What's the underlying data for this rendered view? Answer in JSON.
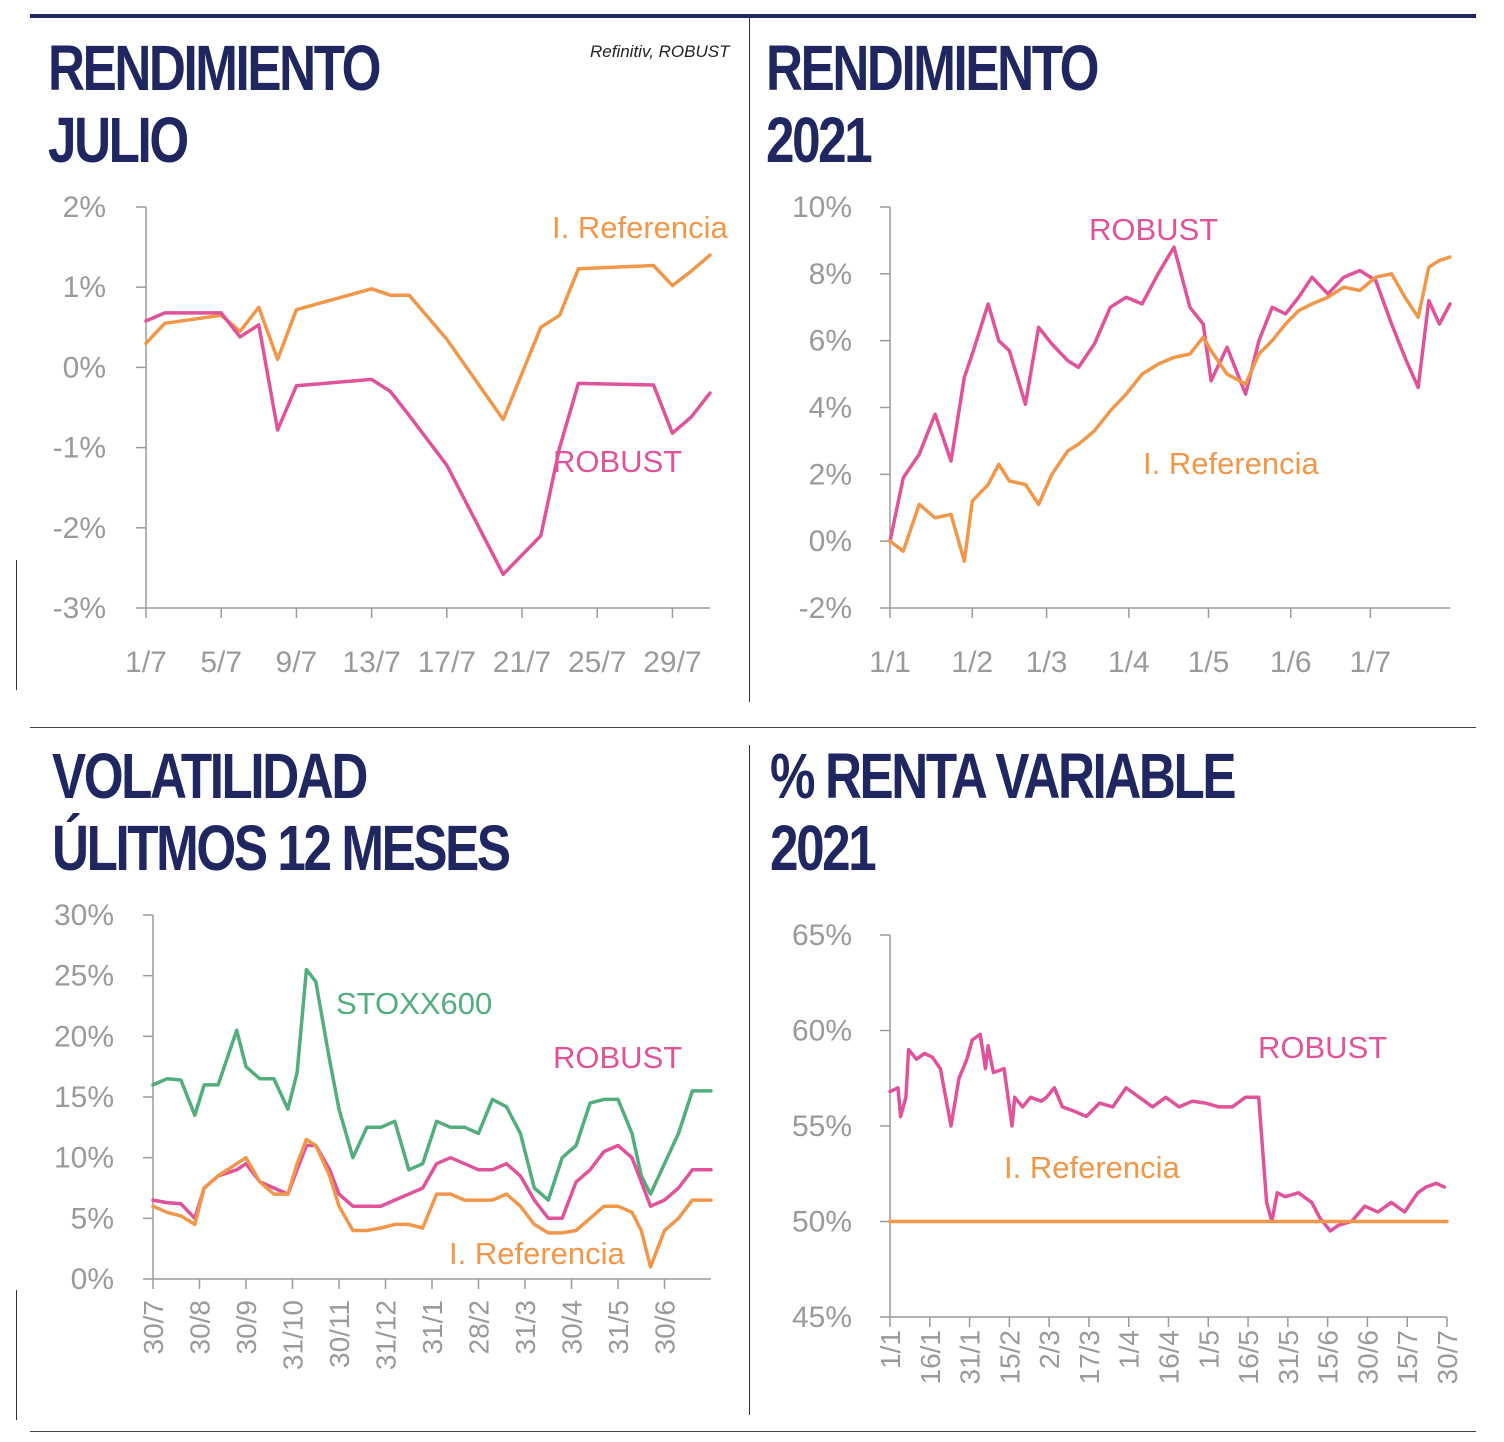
{
  "source": "Refinitiv, ROBUST",
  "colors": {
    "robust": "#e0529a",
    "referencia": "#f0974a",
    "stoxx": "#52ae7c",
    "axis": "#9a9a9a",
    "title": "#1f2660"
  },
  "panels": {
    "p1": {
      "title1": "RENDIMIENTO",
      "title2": "JULIO"
    },
    "p2": {
      "title1": "RENDIMIENTO",
      "title2": "2021"
    },
    "p3": {
      "title1": "VOLATILIDAD",
      "title2": "ÚLITMOS 12 MESES"
    },
    "p4": {
      "title1": "% RENTA VARIABLE",
      "title2": "2021"
    }
  },
  "chart_data": [
    {
      "type": "line",
      "title": "RENDIMIENTO JULIO",
      "x_ticks": [
        "1/7",
        "5/7",
        "9/7",
        "13/7",
        "17/7",
        "21/7",
        "25/7",
        "29/7"
      ],
      "x_tick_days": [
        1,
        5,
        9,
        13,
        17,
        21,
        25,
        29
      ],
      "xlim": [
        1,
        31
      ],
      "y_ticks": [
        "2%",
        "1%",
        "0%",
        "-1%",
        "-2%",
        "-3%"
      ],
      "ylim": [
        -3,
        2
      ],
      "series": [
        {
          "name": "I. Referencia",
          "color": "referencia",
          "x": [
            1,
            2,
            5,
            6,
            7,
            8,
            9,
            13,
            14,
            15,
            17,
            20,
            22,
            23,
            24,
            28,
            29,
            30,
            31
          ],
          "y": [
            0.3,
            0.55,
            0.65,
            0.45,
            0.75,
            0.1,
            0.72,
            0.98,
            0.9,
            0.9,
            0.35,
            -0.65,
            0.5,
            0.65,
            1.23,
            1.27,
            1.02,
            1.2,
            1.4
          ]
        },
        {
          "name": "ROBUST",
          "color": "robust",
          "x": [
            1,
            2,
            5,
            6,
            7,
            8,
            9,
            13,
            14,
            15,
            17,
            20,
            22,
            23,
            24,
            28,
            29,
            30,
            31
          ],
          "y": [
            0.58,
            0.68,
            0.68,
            0.38,
            0.53,
            -0.78,
            -0.23,
            -0.15,
            -0.3,
            -0.6,
            -1.22,
            -2.58,
            -2.1,
            -1.0,
            -0.2,
            -0.22,
            -0.82,
            -0.62,
            -0.32
          ]
        }
      ],
      "annotations": [
        {
          "text": "I. Referencia",
          "series": "referencia"
        },
        {
          "text": "ROBUST",
          "series": "robust"
        }
      ]
    },
    {
      "type": "line",
      "title": "RENDIMIENTO 2021",
      "x_ticks": [
        "1/1",
        "1/2",
        "1/3",
        "1/4",
        "1/5",
        "1/6",
        "1/7"
      ],
      "x_tick_doy": [
        1,
        32,
        60,
        91,
        121,
        152,
        182
      ],
      "xlim": [
        1,
        212
      ],
      "y_ticks": [
        "10%",
        "8%",
        "6%",
        "4%",
        "2%",
        "0%",
        "-2%"
      ],
      "ylim": [
        -2,
        10
      ],
      "series": [
        {
          "name": "ROBUST",
          "color": "robust",
          "doy": [
            1,
            6,
            12,
            18,
            24,
            29,
            32,
            38,
            42,
            46,
            52,
            57,
            62,
            68,
            72,
            78,
            84,
            90,
            96,
            102,
            108,
            114,
            119,
            122,
            128,
            135,
            140,
            145,
            150,
            155,
            160,
            166,
            172,
            178,
            184,
            190,
            195,
            200,
            204,
            208,
            212
          ],
          "y": [
            0.0,
            1.9,
            2.6,
            3.8,
            2.4,
            4.9,
            5.6,
            7.1,
            6.0,
            5.7,
            4.1,
            6.4,
            5.9,
            5.4,
            5.2,
            5.9,
            7.0,
            7.3,
            7.1,
            8.0,
            8.8,
            7.0,
            6.5,
            4.8,
            5.8,
            4.4,
            6.0,
            7.0,
            6.8,
            7.3,
            7.9,
            7.4,
            7.9,
            8.1,
            7.8,
            6.5,
            5.5,
            4.6,
            7.2,
            6.5,
            7.1
          ]
        },
        {
          "name": "I. Referencia",
          "color": "referencia",
          "doy": [
            1,
            6,
            12,
            18,
            24,
            29,
            32,
            38,
            42,
            46,
            52,
            57,
            62,
            68,
            72,
            78,
            84,
            90,
            96,
            102,
            108,
            114,
            119,
            122,
            128,
            135,
            140,
            145,
            150,
            155,
            160,
            166,
            172,
            178,
            184,
            190,
            195,
            200,
            204,
            208,
            212
          ],
          "y": [
            0.0,
            -0.3,
            1.1,
            0.7,
            0.8,
            -0.6,
            1.2,
            1.7,
            2.3,
            1.8,
            1.7,
            1.1,
            2.0,
            2.7,
            2.9,
            3.3,
            3.9,
            4.4,
            5.0,
            5.3,
            5.5,
            5.6,
            6.1,
            5.7,
            5.0,
            4.7,
            5.6,
            6.0,
            6.5,
            6.9,
            7.1,
            7.3,
            7.6,
            7.5,
            7.9,
            8.0,
            7.3,
            6.7,
            8.2,
            8.4,
            8.5
          ]
        }
      ],
      "annotations": [
        {
          "text": "ROBUST",
          "series": "robust"
        },
        {
          "text": "I. Referencia",
          "series": "referencia"
        }
      ]
    },
    {
      "type": "line",
      "title": "VOLATILIDAD ÚLITMOS 12 MESES",
      "x_ticks": [
        "30/7",
        "30/8",
        "30/9",
        "31/10",
        "30/11",
        "31/12",
        "31/1",
        "28/2",
        "31/3",
        "30/4",
        "31/5",
        "30/6"
      ],
      "x_tick_months": [
        0,
        1,
        2,
        3,
        4,
        5,
        6,
        7,
        8,
        9,
        10,
        11
      ],
      "xlim": [
        0,
        12
      ],
      "y_ticks": [
        "30%",
        "25%",
        "20%",
        "15%",
        "10%",
        "5%",
        "0%"
      ],
      "ylim": [
        0,
        30
      ],
      "series": [
        {
          "name": "STOXX600",
          "color": "stoxx",
          "m": [
            0,
            0.3,
            0.6,
            0.9,
            1.1,
            1.4,
            1.8,
            2.0,
            2.3,
            2.6,
            2.9,
            3.1,
            3.3,
            3.5,
            3.8,
            4.0,
            4.3,
            4.6,
            4.9,
            5.2,
            5.5,
            5.8,
            6.1,
            6.4,
            6.7,
            7.0,
            7.3,
            7.6,
            7.9,
            8.2,
            8.5,
            8.8,
            9.1,
            9.4,
            9.7,
            10.0,
            10.3,
            10.5,
            10.7,
            11.0,
            11.3,
            11.6,
            12.0
          ],
          "y": [
            16.0,
            16.5,
            16.4,
            13.5,
            16.0,
            16.0,
            20.5,
            17.5,
            16.5,
            16.5,
            14.0,
            17.0,
            25.5,
            24.5,
            18.0,
            14.0,
            10.0,
            12.5,
            12.5,
            13.0,
            9.0,
            9.5,
            13.0,
            12.5,
            12.5,
            12.0,
            14.8,
            14.2,
            12.0,
            7.5,
            6.5,
            10.0,
            11.0,
            14.5,
            14.8,
            14.8,
            12.0,
            8.5,
            7.0,
            9.5,
            12.0,
            15.5,
            15.5
          ]
        },
        {
          "name": "ROBUST",
          "color": "robust",
          "m": [
            0,
            0.3,
            0.6,
            0.9,
            1.1,
            1.4,
            1.8,
            2.0,
            2.3,
            2.6,
            2.9,
            3.1,
            3.3,
            3.5,
            3.8,
            4.0,
            4.3,
            4.6,
            4.9,
            5.2,
            5.5,
            5.8,
            6.1,
            6.4,
            6.7,
            7.0,
            7.3,
            7.6,
            7.9,
            8.2,
            8.5,
            8.8,
            9.1,
            9.4,
            9.7,
            10.0,
            10.3,
            10.5,
            10.7,
            11.0,
            11.3,
            11.6,
            12.0
          ],
          "y": [
            6.5,
            6.3,
            6.2,
            5.0,
            7.5,
            8.5,
            9.0,
            9.5,
            8.0,
            7.5,
            7.0,
            9.0,
            11.0,
            11.0,
            9.0,
            7.0,
            6.0,
            6.0,
            6.0,
            6.5,
            7.0,
            7.5,
            9.5,
            10.0,
            9.5,
            9.0,
            9.0,
            9.5,
            8.5,
            6.5,
            5.0,
            5.0,
            8.0,
            9.0,
            10.5,
            11.0,
            10.0,
            8.0,
            6.0,
            6.5,
            7.5,
            9.0,
            9.0
          ]
        },
        {
          "name": "I. Referencia",
          "color": "referencia",
          "m": [
            0,
            0.3,
            0.6,
            0.9,
            1.1,
            1.4,
            1.8,
            2.0,
            2.3,
            2.6,
            2.9,
            3.1,
            3.3,
            3.5,
            3.8,
            4.0,
            4.3,
            4.6,
            4.9,
            5.2,
            5.5,
            5.8,
            6.1,
            6.4,
            6.7,
            7.0,
            7.3,
            7.6,
            7.9,
            8.2,
            8.5,
            8.8,
            9.1,
            9.4,
            9.7,
            10.0,
            10.3,
            10.5,
            10.7,
            11.0,
            11.3,
            11.6,
            12.0
          ],
          "y": [
            6.0,
            5.5,
            5.2,
            4.5,
            7.5,
            8.5,
            9.5,
            10.0,
            8.0,
            7.0,
            7.0,
            9.5,
            11.5,
            11.0,
            8.5,
            6.0,
            4.0,
            4.0,
            4.2,
            4.5,
            4.5,
            4.2,
            7.0,
            7.0,
            6.5,
            6.5,
            6.5,
            7.0,
            6.0,
            4.5,
            3.8,
            3.8,
            4.0,
            5.0,
            6.0,
            6.0,
            5.5,
            4.0,
            1.0,
            4.0,
            5.0,
            6.5,
            6.5
          ]
        }
      ],
      "annotations": [
        {
          "text": "STOXX600",
          "series": "stoxx"
        },
        {
          "text": "ROBUST",
          "series": "robust"
        },
        {
          "text": "I. Referencia",
          "series": "referencia"
        }
      ]
    },
    {
      "type": "line",
      "title": "% RENTA VARIABLE 2021",
      "x_ticks": [
        "1/1",
        "16/1",
        "31/1",
        "15/2",
        "2/3",
        "17/3",
        "1/4",
        "16/4",
        "1/5",
        "16/5",
        "31/5",
        "15/6",
        "30/6",
        "15/7",
        "30/7"
      ],
      "x_tick_doy": [
        1,
        16,
        31,
        46,
        61,
        76,
        91,
        106,
        121,
        136,
        151,
        166,
        181,
        196,
        211
      ],
      "xlim": [
        1,
        211
      ],
      "y_ticks": [
        "65%",
        "60%",
        "55%",
        "50%",
        "45%"
      ],
      "ylim": [
        45,
        65
      ],
      "series": [
        {
          "name": "ROBUST",
          "color": "robust",
          "doy": [
            1,
            4,
            5,
            7,
            8,
            11,
            14,
            17,
            20,
            24,
            27,
            30,
            32,
            35,
            37,
            38,
            40,
            44,
            47,
            48,
            51,
            54,
            58,
            60,
            63,
            66,
            70,
            75,
            80,
            85,
            90,
            95,
            100,
            105,
            110,
            115,
            120,
            125,
            130,
            135,
            140,
            143,
            145,
            147,
            150,
            155,
            160,
            163,
            167,
            170,
            175,
            180,
            185,
            190,
            195,
            200,
            203,
            207,
            210
          ],
          "y": [
            56.8,
            57.0,
            55.5,
            56.5,
            59.0,
            58.5,
            58.8,
            58.6,
            58.0,
            55.0,
            57.5,
            58.5,
            59.5,
            59.8,
            58.0,
            59.2,
            57.8,
            58.0,
            55.0,
            56.5,
            56.0,
            56.5,
            56.3,
            56.5,
            57.0,
            56.0,
            55.8,
            55.5,
            56.2,
            56.0,
            57.0,
            56.5,
            56.0,
            56.5,
            56.0,
            56.3,
            56.2,
            56.0,
            56.0,
            56.5,
            56.5,
            51.0,
            50.0,
            51.5,
            51.3,
            51.5,
            51.0,
            50.2,
            49.5,
            49.8,
            50.0,
            50.8,
            50.5,
            51.0,
            50.5,
            51.5,
            51.8,
            52.0,
            51.8
          ]
        },
        {
          "name": "I. Referencia",
          "color": "referencia",
          "doy": [
            1,
            211
          ],
          "y": [
            50.0,
            50.0
          ]
        }
      ],
      "annotations": [
        {
          "text": "ROBUST",
          "series": "robust"
        },
        {
          "text": "I.  Referencia",
          "series": "referencia"
        }
      ]
    }
  ]
}
